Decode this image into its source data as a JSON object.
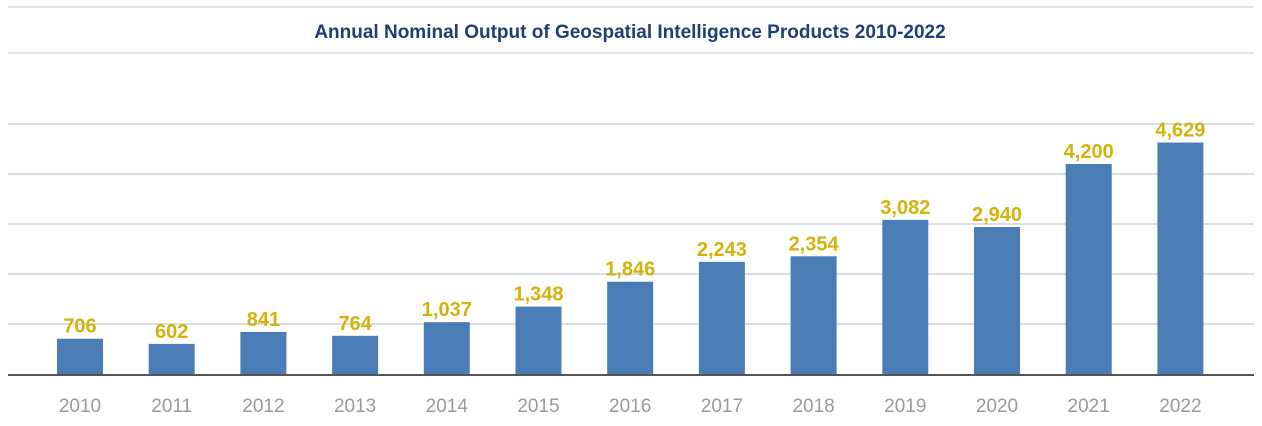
{
  "chart_data": {
    "type": "bar",
    "title": "Annual Nominal Output of Geospatial Intelligence Products 2010-2022",
    "categories": [
      "2010",
      "2011",
      "2012",
      "2013",
      "2014",
      "2015",
      "2016",
      "2017",
      "2018",
      "2019",
      "2020",
      "2021",
      "2022"
    ],
    "values": [
      706,
      602,
      841,
      764,
      1037,
      1348,
      1846,
      2243,
      2354,
      3082,
      2940,
      4200,
      4629
    ],
    "value_labels": [
      "706",
      "602",
      "841",
      "764",
      "1,037",
      "1,348",
      "1,846",
      "2,243",
      "2,354",
      "3,082",
      "2,940",
      "4,200",
      "4,629"
    ],
    "xlabel": "",
    "ylabel": "",
    "ylim": [
      0,
      5000
    ],
    "grid": true,
    "y_axis_labels_shown": false,
    "colors": {
      "bar": "#4a7db5",
      "value_label": "#d4b20c",
      "title": "#1f3f73",
      "grid": "#d8dde6",
      "tick": "#9a9a9a"
    }
  }
}
